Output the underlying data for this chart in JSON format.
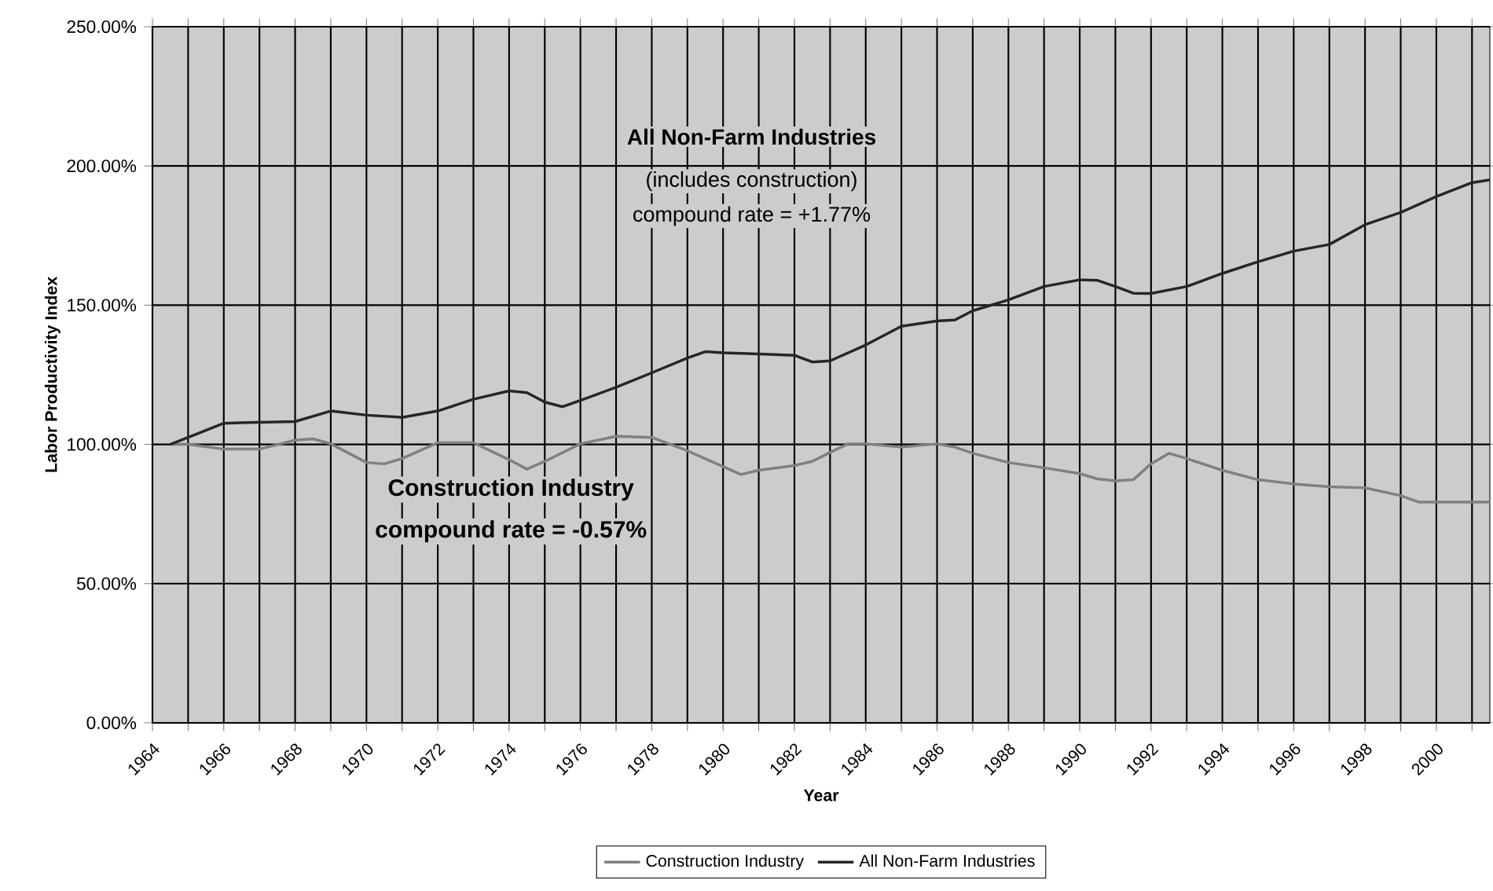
{
  "chart_data": {
    "type": "line",
    "xlabel": "Year",
    "ylabel": "Labor Productivity Index",
    "annotations": [
      "**All Non-Farm Industries**",
      "(includes construction)",
      "compound rate = +1.77%",
      "**Construction Industry**",
      "**compound rate = -0.57%**"
    ],
    "xlim": [
      1964,
      2001.5
    ],
    "xticks": [
      1964,
      {
        "value": 1965,
        "label": null
      },
      1966,
      {
        "value": 1967,
        "label": null
      },
      1968,
      {
        "value": 1969,
        "label": null
      },
      1970,
      {
        "value": 1971,
        "label": null
      },
      1972,
      {
        "value": 1973,
        "label": null
      },
      1974,
      {
        "value": 1975,
        "label": null
      },
      1976,
      {
        "value": 1977,
        "label": null
      },
      1978,
      {
        "value": 1979,
        "label": null
      },
      1980,
      {
        "value": 1981,
        "label": null
      },
      1982,
      {
        "value": 1983,
        "label": null
      },
      1984,
      {
        "value": 1985,
        "label": null
      },
      1986,
      {
        "value": 1987,
        "label": null
      },
      1988,
      {
        "value": 1989,
        "label": null
      },
      1990,
      {
        "value": 1991,
        "label": null
      },
      1992,
      {
        "value": 1993,
        "label": null
      },
      1994,
      {
        "value": 1995,
        "label": null
      },
      1996,
      {
        "value": 1997,
        "label": null
      },
      1998,
      {
        "value": 1999,
        "label": null
      },
      2000,
      {
        "value": 2001,
        "label": null
      }
    ],
    "ylim": [
      0,
      250
    ],
    "yticks": [
      {
        "value": 0,
        "label": "0.00%"
      },
      {
        "value": 50,
        "label": "50.00%"
      },
      {
        "value": 100,
        "label": "100.00%"
      },
      {
        "value": 150,
        "label": "150.00%"
      },
      {
        "value": 200,
        "label": "200.00%"
      },
      {
        "value": 250,
        "label": "250.00%"
      }
    ],
    "grid": true,
    "legend": "bottom",
    "marker": "none",
    "line_style": "solid",
    "series": [
      {
        "name": "Construction Industry",
        "color": "#808080",
        "x": [
          1964.5,
          1965,
          1966,
          1967,
          1968,
          1968.5,
          1969,
          1970,
          1970.5,
          1971,
          1972,
          1973,
          1974,
          1974.5,
          1975,
          1976,
          1977,
          1978,
          1979,
          1980,
          1980.5,
          1981,
          1982,
          1982.5,
          1983,
          1983.5,
          1984,
          1985,
          1986,
          1986.5,
          1987,
          1988,
          1989,
          1990,
          1990.5,
          1991,
          1991.5,
          1992,
          1992.5,
          1993,
          1994,
          1995,
          1996,
          1997,
          1998,
          1999,
          1999.5,
          2000,
          2001,
          2001.5
        ],
        "values": [
          100,
          100,
          98.3,
          98.3,
          101.5,
          102,
          100.2,
          93.5,
          93,
          94.9,
          100.6,
          100.6,
          94.5,
          91.1,
          93.9,
          100.2,
          102.9,
          102.5,
          97.7,
          92,
          89.2,
          90.7,
          92.4,
          93.9,
          97.1,
          100.2,
          100.2,
          99,
          100.2,
          99,
          96.8,
          93.5,
          91.6,
          89.5,
          87.6,
          86.9,
          87.3,
          93,
          96.8,
          94.9,
          90.7,
          87.3,
          85.8,
          84.8,
          84.4,
          81.6,
          79.3,
          79.3,
          79.3,
          79.3
        ]
      },
      {
        "name": "All Non-Farm Industries",
        "color": "#262626",
        "x": [
          1964.5,
          1965,
          1966,
          1966.5,
          1968,
          1969,
          1970,
          1971,
          1972,
          1973,
          1974,
          1974.5,
          1975,
          1975.5,
          1976,
          1977,
          1978,
          1979,
          1979.5,
          1980,
          1981,
          1982,
          1982.5,
          1983,
          1984,
          1985,
          1986,
          1986.5,
          1987,
          1988,
          1989,
          1990,
          1990.5,
          1991,
          1991.5,
          1992,
          1993,
          1994,
          1995,
          1996,
          1997,
          1998,
          1999,
          2000,
          2001,
          2001.5
        ],
        "values": [
          100,
          102.5,
          107.6,
          107.8,
          108.2,
          112,
          110.5,
          109.7,
          112,
          116.2,
          119.2,
          118.6,
          115.2,
          113.5,
          115.8,
          120.5,
          125.7,
          131,
          133.3,
          132.9,
          132.5,
          132,
          129.6,
          130,
          135.7,
          142.4,
          144.3,
          144.7,
          148,
          151.9,
          156.7,
          159.1,
          158.9,
          156.7,
          154.3,
          154.2,
          156.7,
          161.4,
          165.6,
          169.4,
          171.8,
          178.9,
          183.3,
          189,
          194,
          195
        ]
      }
    ]
  }
}
